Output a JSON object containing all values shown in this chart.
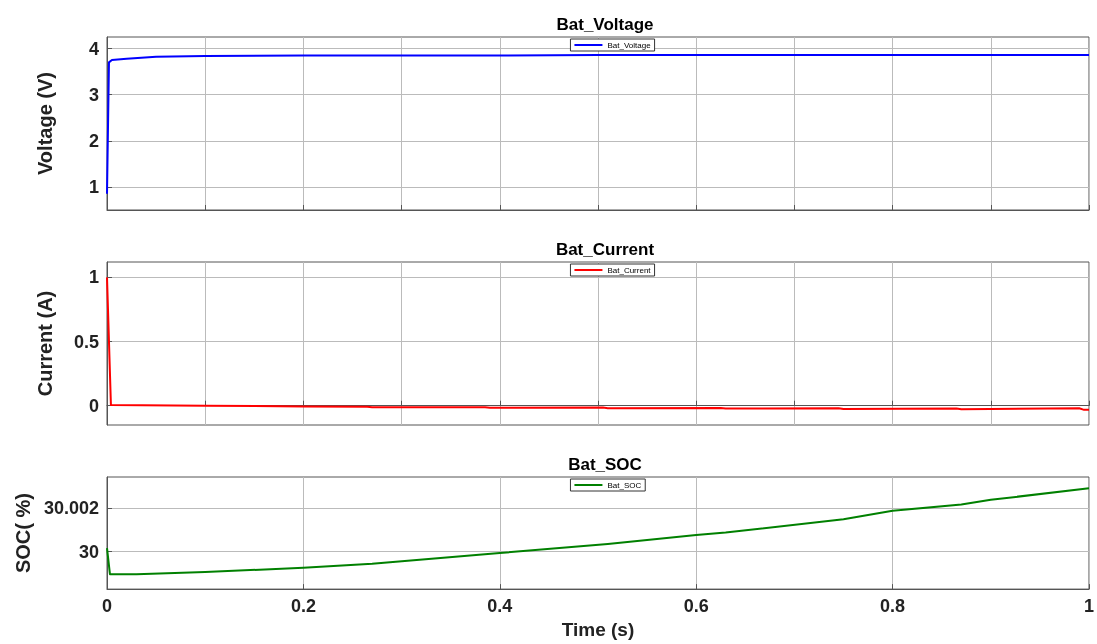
{
  "chart_data": [
    {
      "type": "line",
      "title": "Bat_Voltage",
      "ylabel": "Voltage (V)",
      "xlim": [
        0,
        1
      ],
      "xticks": [
        {
          "value": 0,
          "label": null
        },
        {
          "value": 0.1,
          "label": null
        },
        {
          "value": 0.2,
          "label": null
        },
        {
          "value": 0.3,
          "label": null
        },
        {
          "value": 0.4,
          "label": null
        },
        {
          "value": 0.5,
          "label": null
        },
        {
          "value": 0.6,
          "label": null
        },
        {
          "value": 0.7,
          "label": null
        },
        {
          "value": 0.8,
          "label": null
        },
        {
          "value": 0.9,
          "label": null
        },
        {
          "value": 1,
          "label": null
        }
      ],
      "ylim": [
        0.5,
        4.25
      ],
      "yticks": [
        1,
        2,
        3,
        4
      ],
      "tick_labels": "y",
      "grid": true,
      "legend": "top",
      "line_style": "solid",
      "marker": "none",
      "series": [
        {
          "name": "Bat_Voltage",
          "color": "#0000ff",
          "x": [
            0,
            0.002,
            0.005,
            0.02,
            0.05,
            0.1,
            0.2,
            0.3,
            0.4,
            0.5,
            0.6,
            0.7,
            0.8,
            0.9,
            1
          ],
          "values": [
            0.85,
            3.7,
            3.75,
            3.78,
            3.82,
            3.84,
            3.85,
            3.85,
            3.85,
            3.86,
            3.86,
            3.86,
            3.86,
            3.86,
            3.86
          ]
        }
      ]
    },
    {
      "type": "line",
      "title": "Bat_Current",
      "ylabel": "Current (A)",
      "xlim": [
        0,
        1
      ],
      "xticks": [
        {
          "value": 0,
          "label": null
        },
        {
          "value": 0.1,
          "label": null
        },
        {
          "value": 0.2,
          "label": null
        },
        {
          "value": 0.3,
          "label": null
        },
        {
          "value": 0.4,
          "label": null
        },
        {
          "value": 0.5,
          "label": null
        },
        {
          "value": 0.6,
          "label": null
        },
        {
          "value": 0.7,
          "label": null
        },
        {
          "value": 0.8,
          "label": null
        },
        {
          "value": 0.9,
          "label": null
        },
        {
          "value": 1,
          "label": null
        }
      ],
      "ylim": [
        -0.15,
        1.12
      ],
      "yticks": [
        0,
        0.5,
        1
      ],
      "tick_labels": "y",
      "grid": true,
      "legend": "top",
      "line_style": "solid",
      "marker": "none",
      "series": [
        {
          "name": "Bat_Current",
          "color": "#ff0000",
          "x": [
            0,
            0.004,
            0.1,
            0.2,
            0.265,
            0.27,
            0.385,
            0.39,
            0.505,
            0.51,
            0.625,
            0.63,
            0.745,
            0.75,
            0.865,
            0.87,
            0.99,
            0.995,
            1
          ],
          "values": [
            1,
            0.005,
            0,
            -0.005,
            -0.008,
            -0.012,
            -0.012,
            -0.016,
            -0.014,
            -0.02,
            -0.018,
            -0.022,
            -0.02,
            -0.026,
            -0.022,
            -0.028,
            -0.02,
            -0.032,
            -0.032
          ]
        }
      ]
    },
    {
      "type": "line",
      "title": "Bat_SOC",
      "xlabel": "Time (s)",
      "ylabel": "SOC( %)",
      "xlim": [
        0,
        1
      ],
      "xticks": [
        0,
        0.2,
        0.4,
        0.6,
        0.8,
        1
      ],
      "ylim": [
        29.9983,
        30.0034
      ],
      "yticks": [
        30,
        {
          "value": 30.002,
          "label": "30.002"
        }
      ],
      "grid": true,
      "legend": "top",
      "line_style": "solid",
      "marker": "none",
      "series": [
        {
          "name": "Bat_SOC",
          "color": "#008000",
          "x": [
            0,
            0.003,
            0.03,
            0.1,
            0.2,
            0.27,
            0.4,
            0.51,
            0.6,
            0.63,
            0.75,
            0.8,
            0.87,
            0.9,
            1
          ],
          "values": [
            30.00016,
            29.99898,
            29.99898,
            29.99908,
            29.99927,
            29.99945,
            29.99994,
            30.00035,
            30.00076,
            30.00087,
            30.00148,
            30.00186,
            30.00215,
            30.00236,
            30.00289
          ]
        }
      ]
    }
  ]
}
